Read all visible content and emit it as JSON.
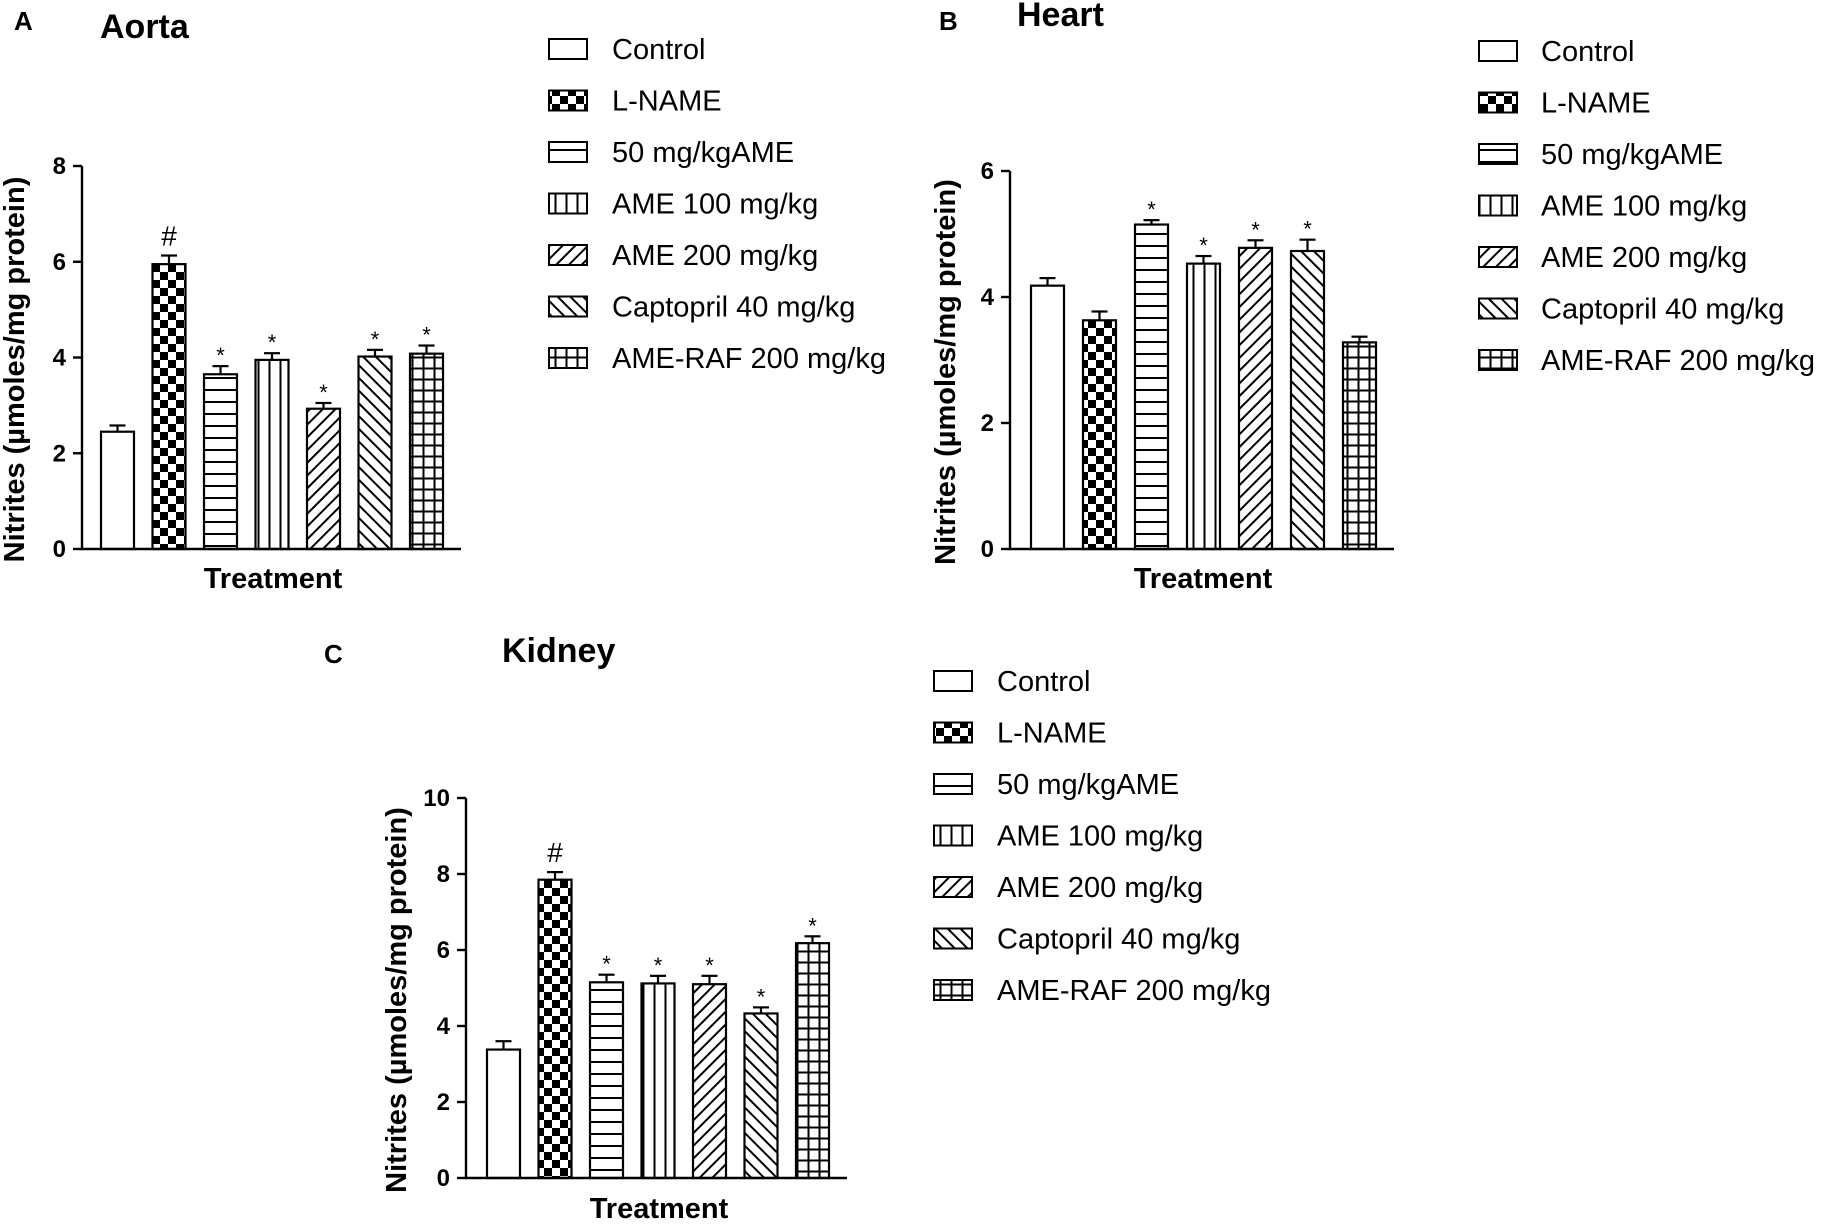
{
  "figure": {
    "legend_labels": [
      "Control",
      "L-NAME",
      "50 mg/kgAME",
      "AME 100 mg/kg",
      "AME 200 mg/kg",
      "Captopril 40 mg/kg",
      "AME-RAF 200 mg/kg"
    ],
    "colors": {
      "ink": "#000000",
      "fill": "#ffffff"
    }
  },
  "chart_data": [
    {
      "type": "bar",
      "panel": "A",
      "title": "Aorta",
      "xlabel": "Treatment",
      "ylabel": "Nitrites (µmoles/mg protein)",
      "ylim": [
        0,
        8
      ],
      "yticks": [
        0,
        2,
        4,
        6,
        8
      ],
      "categories": [
        "Control",
        "L-NAME",
        "50 mg/kgAME",
        "AME 100 mg/kg",
        "AME 200 mg/kg",
        "Captopril 40 mg/kg",
        "AME-RAF 200 mg/kg"
      ],
      "values": [
        2.45,
        5.95,
        3.65,
        3.95,
        2.93,
        4.02,
        4.08
      ],
      "errors": [
        0.13,
        0.18,
        0.17,
        0.14,
        0.12,
        0.14,
        0.17
      ],
      "annotations": [
        "",
        "#",
        "*",
        "*",
        "*",
        "*",
        "*"
      ]
    },
    {
      "type": "bar",
      "panel": "B",
      "title": "Heart",
      "xlabel": "Treatment",
      "ylabel": "Nitrites (µmoles/mg protein)",
      "ylim": [
        0,
        6
      ],
      "yticks": [
        0,
        2,
        4,
        6
      ],
      "categories": [
        "Control",
        "L-NAME",
        "50 mg/kgAME",
        "AME 100 mg/kg",
        "AME 200 mg/kg",
        "Captopril 40 mg/kg",
        "AME-RAF 200 mg/kg"
      ],
      "values": [
        4.18,
        3.63,
        5.15,
        4.53,
        4.78,
        4.73,
        3.28
      ],
      "errors": [
        0.12,
        0.14,
        0.07,
        0.12,
        0.12,
        0.18,
        0.09
      ],
      "annotations": [
        "",
        "",
        "*",
        "*",
        "*",
        "*",
        ""
      ]
    },
    {
      "type": "bar",
      "panel": "C",
      "title": "Kidney",
      "xlabel": "Treatment",
      "ylabel": "Nitrites (µmoles/mg protein)",
      "ylim": [
        0,
        10
      ],
      "yticks": [
        0,
        2,
        4,
        6,
        8,
        10
      ],
      "categories": [
        "Control",
        "L-NAME",
        "50 mg/kgAME",
        "AME 100 mg/kg",
        "AME 200 mg/kg",
        "Captopril 40 mg/kg",
        "AME-RAF 200 mg/kg"
      ],
      "values": [
        3.38,
        7.85,
        5.15,
        5.12,
        5.1,
        4.33,
        6.18
      ],
      "errors": [
        0.22,
        0.2,
        0.2,
        0.2,
        0.22,
        0.16,
        0.18
      ],
      "annotations": [
        "",
        "#",
        "*",
        "*",
        "*",
        "*",
        "*"
      ]
    }
  ]
}
